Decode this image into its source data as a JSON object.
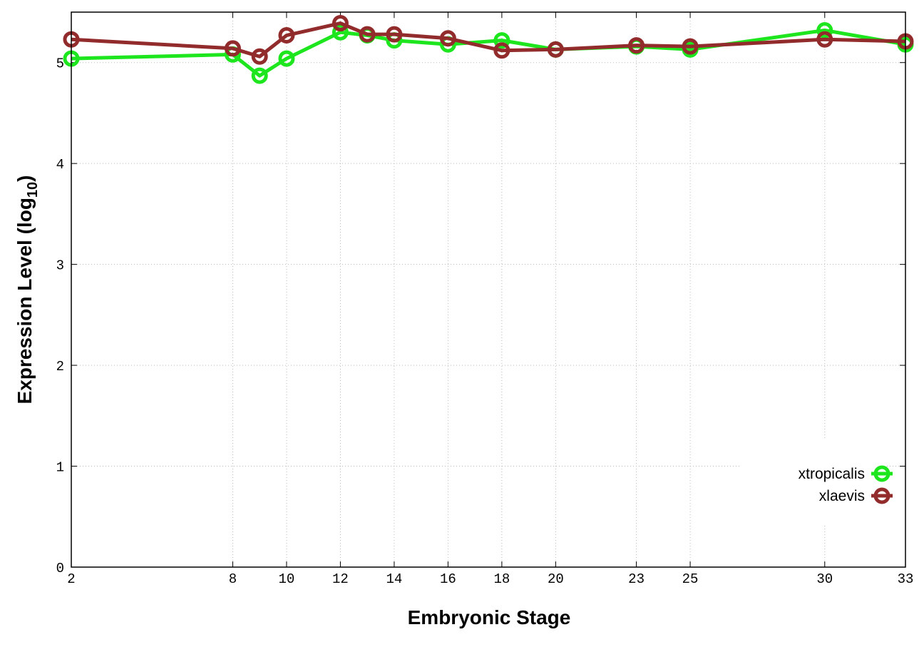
{
  "chart_data": {
    "type": "line",
    "x_label": "Embryonic Stage",
    "y_label": [
      "Expression Level (log",
      "10",
      ")"
    ],
    "x": [
      2,
      8,
      9,
      10,
      12,
      13,
      14,
      16,
      18,
      20,
      23,
      25,
      30,
      33
    ],
    "series": [
      {
        "name": "xtropicalis",
        "color": "#1ee61e",
        "values": [
          5.04,
          5.08,
          4.87,
          5.04,
          5.3,
          5.27,
          5.22,
          5.18,
          5.22,
          5.13,
          5.16,
          5.13,
          5.32,
          5.18
        ]
      },
      {
        "name": "xlaevis",
        "color": "#922b2b",
        "values": [
          5.23,
          5.14,
          5.06,
          5.27,
          5.39,
          5.28,
          5.28,
          5.24,
          5.12,
          5.13,
          5.17,
          5.16,
          5.23,
          5.21
        ]
      }
    ],
    "xlim": [
      2,
      33
    ],
    "xticks": [
      2,
      8,
      10,
      12,
      14,
      16,
      18,
      20,
      23,
      25,
      30,
      33
    ],
    "ylim": [
      0,
      5.5
    ],
    "yticks": [
      0,
      1,
      2,
      3,
      4,
      5
    ],
    "grid": true,
    "legend": "lower right"
  }
}
